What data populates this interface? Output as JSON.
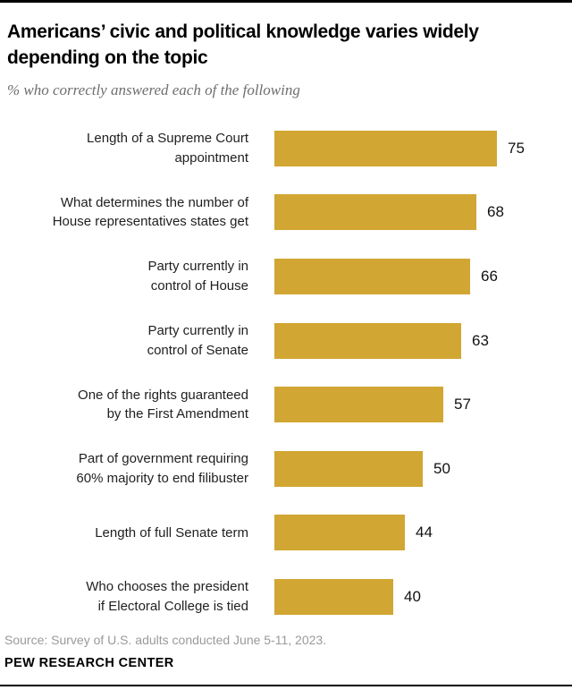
{
  "header": {
    "title_line1": "Americans’ civic and political knowledge varies widely",
    "title_line2": "depending on the topic",
    "subtitle": "% who correctly answered each of the following"
  },
  "chart_data": {
    "type": "bar",
    "orientation": "horizontal",
    "title": "Americans’ civic and political knowledge varies widely depending on the topic",
    "subtitle": "% who correctly answered each of the following",
    "categories": [
      "Length of a Supreme Court appointment",
      "What determines the number of House representatives states get",
      "Party currently in control of House",
      "Party currently in control of Senate",
      "One of the rights guaranteed by the First Amendment",
      "Part of government requiring 60% majority to end filibuster",
      "Length of full Senate term",
      "Who chooses the president if Electoral College is tied"
    ],
    "values": [
      75,
      68,
      66,
      63,
      57,
      50,
      44,
      40
    ],
    "value_unit": "percent",
    "xlim": [
      0,
      100
    ],
    "grid": false,
    "axis_shown": false,
    "bar_color": "#d1a633",
    "rows": [
      {
        "line1": "Length of a Supreme Court",
        "line2": "appointment",
        "value": 75
      },
      {
        "line1": "What determines the number of",
        "line2": "House representatives states get",
        "value": 68
      },
      {
        "line1": "Party currently in",
        "line2": "control of House",
        "value": 66
      },
      {
        "line1": "Party currently in",
        "line2": "control of Senate",
        "value": 63
      },
      {
        "line1": "One of the rights guaranteed",
        "line2": "by the First Amendment",
        "value": 57
      },
      {
        "line1": "Part of government requiring",
        "line2": "60% majority to end filibuster",
        "value": 50
      },
      {
        "line1": "Length of full Senate term",
        "line2": "",
        "value": 44
      },
      {
        "line1": "Who chooses the president",
        "line2": "if Electoral College is tied",
        "value": 40
      }
    ]
  },
  "footer": {
    "source": "Source: Survey of U.S. adults conducted June 5-11, 2023.",
    "brand": "PEW RESEARCH CENTER"
  }
}
